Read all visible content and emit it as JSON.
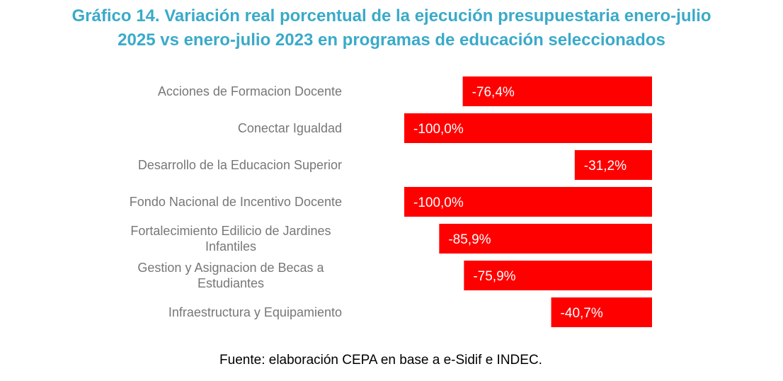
{
  "chart_data": {
    "type": "bar",
    "orientation": "horizontal",
    "title": [
      "Gráfico 14. Variación real porcentual de la ejecución presupuestaria enero-julio",
      "2025 vs enero-julio 2023 en programas de educación seleccionados"
    ],
    "categories": [
      [
        "Acciones de Formacion Docente"
      ],
      [
        "Conectar Igualdad"
      ],
      [
        "Desarrollo de la Educacion Superior"
      ],
      [
        "Fondo Nacional de Incentivo Docente"
      ],
      [
        "Fortalecimiento Edilicio de Jardines",
        "Infantiles"
      ],
      [
        "Gestion y Asignacion de Becas a",
        "Estudiantes"
      ],
      [
        "Infraestructura y Equipamiento"
      ]
    ],
    "values": [
      -76.4,
      -100.0,
      -31.2,
      -100.0,
      -85.9,
      -75.9,
      -40.7
    ],
    "data_labels": [
      "-76,4%",
      "-100,0%",
      "-31,2%",
      "-100,0%",
      "-85,9%",
      "-75,9%",
      "-40,7%"
    ],
    "xlim": [
      -100,
      0
    ],
    "grid": false,
    "bar_color": "#ff0000",
    "title_color": "#3aaac9",
    "source": "Fuente: elaboración CEPA en base a e-Sidif e INDEC."
  }
}
